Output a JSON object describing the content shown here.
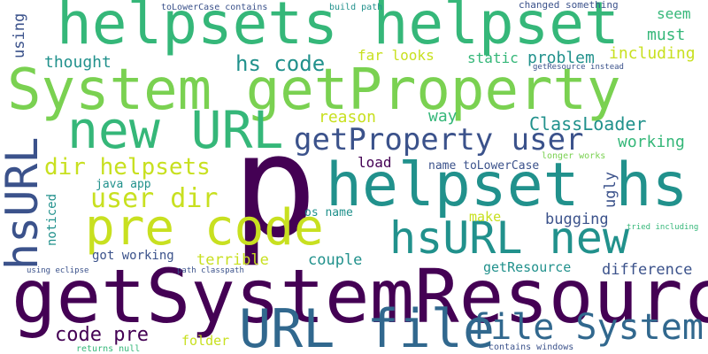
{
  "palette": {
    "dark_purple": "#440154",
    "indigo": "#3b528b",
    "blue": "#31688e",
    "teal": "#21918c",
    "green": "#35b779",
    "lime": "#7ad151",
    "yellow": "#c8e020"
  },
  "words": [
    {
      "text": "p"
    },
    {
      "text": "getSystemResource"
    },
    {
      "text": "System getProperty"
    },
    {
      "text": "helpsets helpset"
    },
    {
      "text": "helpset hs"
    },
    {
      "text": "new URL"
    },
    {
      "text": "hsURL new"
    },
    {
      "text": "pre code"
    },
    {
      "text": "URL file"
    },
    {
      "text": "file System"
    },
    {
      "text": "hsURL"
    },
    {
      "text": "getProperty user"
    },
    {
      "text": "user dir"
    },
    {
      "text": "dir helpsets"
    },
    {
      "text": "hs code"
    },
    {
      "text": "code pre"
    },
    {
      "text": "ClassLoader"
    },
    {
      "text": "thought"
    },
    {
      "text": "problem"
    },
    {
      "text": "must"
    },
    {
      "text": "seem"
    },
    {
      "text": "including"
    },
    {
      "text": "far looks"
    },
    {
      "text": "static"
    },
    {
      "text": "reason"
    },
    {
      "text": "way"
    },
    {
      "text": "working"
    },
    {
      "text": "load"
    },
    {
      "text": "name toLowerCase"
    },
    {
      "text": "java app"
    },
    {
      "text": "os name"
    },
    {
      "text": "make"
    },
    {
      "text": "bugging"
    },
    {
      "text": "couple"
    },
    {
      "text": "terrible"
    },
    {
      "text": "got working"
    },
    {
      "text": "getResource"
    },
    {
      "text": "difference"
    },
    {
      "text": "folder"
    },
    {
      "text": "ugly"
    },
    {
      "text": "noticed"
    },
    {
      "text": "using"
    },
    {
      "text": "toLowerCase contains"
    },
    {
      "text": "build path"
    },
    {
      "text": "changed something"
    },
    {
      "text": "getResource instead"
    },
    {
      "text": "longer works"
    },
    {
      "text": "tried including"
    },
    {
      "text": "using eclipse"
    },
    {
      "text": "path classpath"
    },
    {
      "text": "returns null"
    },
    {
      "text": "contains windows"
    }
  ]
}
